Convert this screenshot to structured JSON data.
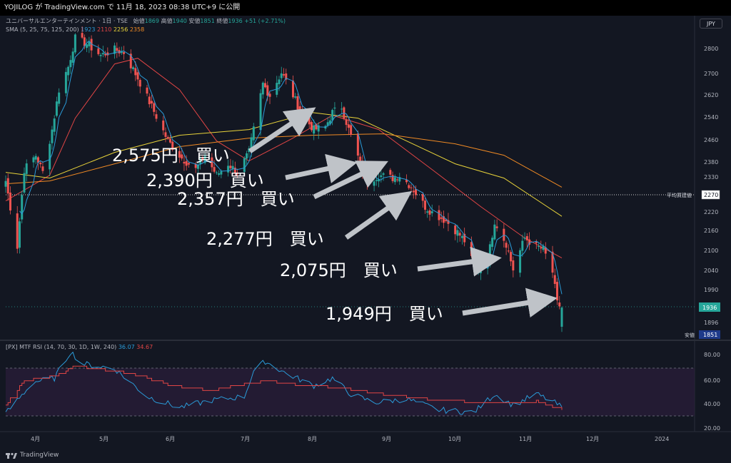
{
  "header": {
    "publish_line": "YOJILOG が TradingView.com で 11月 18, 2023 08:38 UTC+9 に公開"
  },
  "symbol_info": {
    "title": "ユニバーサルエンターテインメント · 1日 · TSE",
    "open_label": "始値",
    "open_value": "1869",
    "high_label": "高値",
    "high_value": "1940",
    "low_label": "安値",
    "low_value": "1851",
    "close_label": "終値",
    "close_value": "1936",
    "change": "+51 (+2.71%)"
  },
  "sma_info": {
    "label": "SMA (5, 25, 75, 125, 200)",
    "values": [
      "1923",
      "2110",
      "2256",
      "2358"
    ]
  },
  "rsi_info": {
    "label": "[PX] MTF RSI (14, 70, 30, 1D, 1W, 240)",
    "value1": "36.07",
    "value2": "34.67"
  },
  "currency_button": "JPY",
  "price_axis_labels": [
    "2800",
    "2700",
    "2620",
    "2540",
    "2460",
    "2380",
    "2330",
    "2270",
    "2220",
    "2160",
    "2100",
    "2040",
    "1990",
    "1936",
    "1896"
  ],
  "price_tags": {
    "avg_line_label": "平均買建値",
    "avg_line_value": "2270",
    "last_price": "1936",
    "low_label": "安値",
    "low_value": "1851"
  },
  "rsi_axis_labels": [
    "80.00",
    "60.00",
    "40.00",
    "20.00"
  ],
  "time_axis_labels": [
    "4月",
    "5月",
    "6月",
    "7月",
    "8月",
    "9月",
    "10月",
    "11月",
    "12月",
    "2024"
  ],
  "annotations": [
    {
      "text": "2,575円　買い"
    },
    {
      "text": "2,390円　買い"
    },
    {
      "text": "2,357円　買い"
    },
    {
      "text": "2,277円　買い"
    },
    {
      "text": "2,075円　買い"
    },
    {
      "text": "1,949円　買い"
    }
  ],
  "footer": {
    "brand": "TradingView"
  },
  "colors": {
    "background": "#131722",
    "up": "#26a69a",
    "down": "#ef5350",
    "sma5": "#2a9bd8",
    "sma25": "#e04545",
    "sma75": "#e8d33a",
    "sma125": "#f08a24",
    "rsi1": "#2a9bd8",
    "rsi2": "#e04545"
  },
  "chart_data": {
    "type": "candlestick",
    "price_range": [
      1830,
      2880
    ],
    "rsi_range": [
      13,
      92
    ],
    "rsi_bands": [
      30,
      70
    ],
    "avg_buy_price": 2270,
    "buy_points": [
      2575,
      2390,
      2357,
      2277,
      2075,
      1949
    ],
    "anchors": [
      {
        "date": "2023-03-22",
        "price": 2380
      },
      {
        "date": "2023-03-27",
        "price": 2150
      },
      {
        "date": "2023-03-30",
        "price": 2420
      },
      {
        "date": "2023-04-04",
        "price": 2470
      },
      {
        "date": "2023-04-07",
        "price": 2410
      },
      {
        "date": "2023-04-11",
        "price": 2560
      },
      {
        "date": "2023-04-14",
        "price": 2700
      },
      {
        "date": "2023-04-18",
        "price": 2780
      },
      {
        "date": "2023-04-21",
        "price": 2880
      },
      {
        "date": "2023-04-26",
        "price": 2860
      },
      {
        "date": "2023-05-02",
        "price": 2820
      },
      {
        "date": "2023-05-08",
        "price": 2840
      },
      {
        "date": "2023-05-12",
        "price": 2830
      },
      {
        "date": "2023-05-18",
        "price": 2740
      },
      {
        "date": "2023-05-24",
        "price": 2640
      },
      {
        "date": "2023-05-31",
        "price": 2520
      },
      {
        "date": "2023-06-06",
        "price": 2460
      },
      {
        "date": "2023-06-12",
        "price": 2420
      },
      {
        "date": "2023-06-16",
        "price": 2470
      },
      {
        "date": "2023-06-21",
        "price": 2400
      },
      {
        "date": "2023-06-26",
        "price": 2440
      },
      {
        "date": "2023-06-30",
        "price": 2410
      },
      {
        "date": "2023-07-05",
        "price": 2480
      },
      {
        "date": "2023-07-11",
        "price": 2720
      },
      {
        "date": "2023-07-14",
        "price": 2680
      },
      {
        "date": "2023-07-19",
        "price": 2760
      },
      {
        "date": "2023-07-24",
        "price": 2680
      },
      {
        "date": "2023-07-28",
        "price": 2610
      },
      {
        "date": "2023-08-02",
        "price": 2560
      },
      {
        "date": "2023-08-07",
        "price": 2570
      },
      {
        "date": "2023-08-10",
        "price": 2620
      },
      {
        "date": "2023-08-14",
        "price": 2640
      },
      {
        "date": "2023-08-17",
        "price": 2560
      },
      {
        "date": "2023-08-22",
        "price": 2440
      },
      {
        "date": "2023-08-25",
        "price": 2380
      },
      {
        "date": "2023-08-30",
        "price": 2400
      },
      {
        "date": "2023-09-05",
        "price": 2390
      },
      {
        "date": "2023-09-08",
        "price": 2400
      },
      {
        "date": "2023-09-13",
        "price": 2360
      },
      {
        "date": "2023-09-19",
        "price": 2290
      },
      {
        "date": "2023-09-22",
        "price": 2270
      },
      {
        "date": "2023-09-28",
        "price": 2240
      },
      {
        "date": "2023-10-03",
        "price": 2200
      },
      {
        "date": "2023-10-06",
        "price": 2170
      },
      {
        "date": "2023-10-11",
        "price": 2060
      },
      {
        "date": "2023-10-16",
        "price": 2100
      },
      {
        "date": "2023-10-19",
        "price": 2240
      },
      {
        "date": "2023-10-24",
        "price": 2160
      },
      {
        "date": "2023-10-27",
        "price": 2070
      },
      {
        "date": "2023-11-01",
        "price": 2180
      },
      {
        "date": "2023-11-06",
        "price": 2150
      },
      {
        "date": "2023-11-09",
        "price": 2140
      },
      {
        "date": "2023-11-13",
        "price": 2060
      },
      {
        "date": "2023-11-15",
        "price": 1950
      },
      {
        "date": "2023-11-17",
        "price": 1936
      }
    ],
    "sma_series": [
      {
        "name": "SMA 25",
        "color": "#e04545",
        "points": [
          {
            "date": "2023-03-22",
            "price": 2310
          },
          {
            "date": "2023-04-10",
            "price": 2400
          },
          {
            "date": "2023-04-21",
            "price": 2600
          },
          {
            "date": "2023-05-08",
            "price": 2790
          },
          {
            "date": "2023-05-18",
            "price": 2810
          },
          {
            "date": "2023-06-05",
            "price": 2700
          },
          {
            "date": "2023-06-21",
            "price": 2520
          },
          {
            "date": "2023-07-05",
            "price": 2450
          },
          {
            "date": "2023-07-24",
            "price": 2530
          },
          {
            "date": "2023-08-10",
            "price": 2610
          },
          {
            "date": "2023-08-30",
            "price": 2560
          },
          {
            "date": "2023-09-22",
            "price": 2420
          },
          {
            "date": "2023-10-13",
            "price": 2290
          },
          {
            "date": "2023-11-01",
            "price": 2180
          },
          {
            "date": "2023-11-17",
            "price": 2110
          }
        ]
      },
      {
        "name": "SMA 75",
        "color": "#e8d33a",
        "points": [
          {
            "date": "2023-03-22",
            "price": 2410
          },
          {
            "date": "2023-04-10",
            "price": 2390
          },
          {
            "date": "2023-05-08",
            "price": 2480
          },
          {
            "date": "2023-06-05",
            "price": 2540
          },
          {
            "date": "2023-07-05",
            "price": 2560
          },
          {
            "date": "2023-08-01",
            "price": 2620
          },
          {
            "date": "2023-08-21",
            "price": 2600
          },
          {
            "date": "2023-09-11",
            "price": 2520
          },
          {
            "date": "2023-10-02",
            "price": 2440
          },
          {
            "date": "2023-10-23",
            "price": 2390
          },
          {
            "date": "2023-11-17",
            "price": 2256
          }
        ]
      },
      {
        "name": "SMA 125",
        "color": "#f08a24",
        "points": [
          {
            "date": "2023-03-22",
            "price": 2370
          },
          {
            "date": "2023-04-10",
            "price": 2380
          },
          {
            "date": "2023-05-08",
            "price": 2440
          },
          {
            "date": "2023-06-05",
            "price": 2500
          },
          {
            "date": "2023-07-05",
            "price": 2530
          },
          {
            "date": "2023-08-01",
            "price": 2540
          },
          {
            "date": "2023-09-01",
            "price": 2545
          },
          {
            "date": "2023-10-02",
            "price": 2510
          },
          {
            "date": "2023-10-23",
            "price": 2470
          },
          {
            "date": "2023-11-17",
            "price": 2358
          }
        ]
      }
    ],
    "rsi_anchors": [
      {
        "date": "2023-03-22",
        "v": 31
      },
      {
        "date": "2023-04-03",
        "v": 57
      },
      {
        "date": "2023-04-12",
        "v": 60
      },
      {
        "date": "2023-04-19",
        "v": 82
      },
      {
        "date": "2023-04-24",
        "v": 72
      },
      {
        "date": "2023-05-08",
        "v": 68
      },
      {
        "date": "2023-05-22",
        "v": 45
      },
      {
        "date": "2023-06-05",
        "v": 36
      },
      {
        "date": "2023-06-19",
        "v": 42
      },
      {
        "date": "2023-07-03",
        "v": 45
      },
      {
        "date": "2023-07-07",
        "v": 66
      },
      {
        "date": "2023-07-12",
        "v": 74
      },
      {
        "date": "2023-07-21",
        "v": 64
      },
      {
        "date": "2023-08-02",
        "v": 54
      },
      {
        "date": "2023-08-10",
        "v": 60
      },
      {
        "date": "2023-08-18",
        "v": 47
      },
      {
        "date": "2023-08-28",
        "v": 40
      },
      {
        "date": "2023-09-11",
        "v": 43
      },
      {
        "date": "2023-09-25",
        "v": 34
      },
      {
        "date": "2023-10-10",
        "v": 32
      },
      {
        "date": "2023-10-19",
        "v": 47
      },
      {
        "date": "2023-10-27",
        "v": 38
      },
      {
        "date": "2023-11-06",
        "v": 47
      },
      {
        "date": "2023-11-13",
        "v": 41
      },
      {
        "date": "2023-11-17",
        "v": 36.07
      }
    ],
    "rsi2_anchors": [
      {
        "date": "2023-03-22",
        "v": 38
      },
      {
        "date": "2023-03-30",
        "v": 58
      },
      {
        "date": "2023-04-14",
        "v": 63
      },
      {
        "date": "2023-04-21",
        "v": 70
      },
      {
        "date": "2023-05-15",
        "v": 64
      },
      {
        "date": "2023-06-01",
        "v": 54
      },
      {
        "date": "2023-06-19",
        "v": 50
      },
      {
        "date": "2023-07-10",
        "v": 58
      },
      {
        "date": "2023-07-24",
        "v": 55
      },
      {
        "date": "2023-08-14",
        "v": 52
      },
      {
        "date": "2023-09-04",
        "v": 46
      },
      {
        "date": "2023-09-25",
        "v": 42
      },
      {
        "date": "2023-10-16",
        "v": 40
      },
      {
        "date": "2023-11-06",
        "v": 41
      },
      {
        "date": "2023-11-17",
        "v": 34.67
      }
    ]
  }
}
